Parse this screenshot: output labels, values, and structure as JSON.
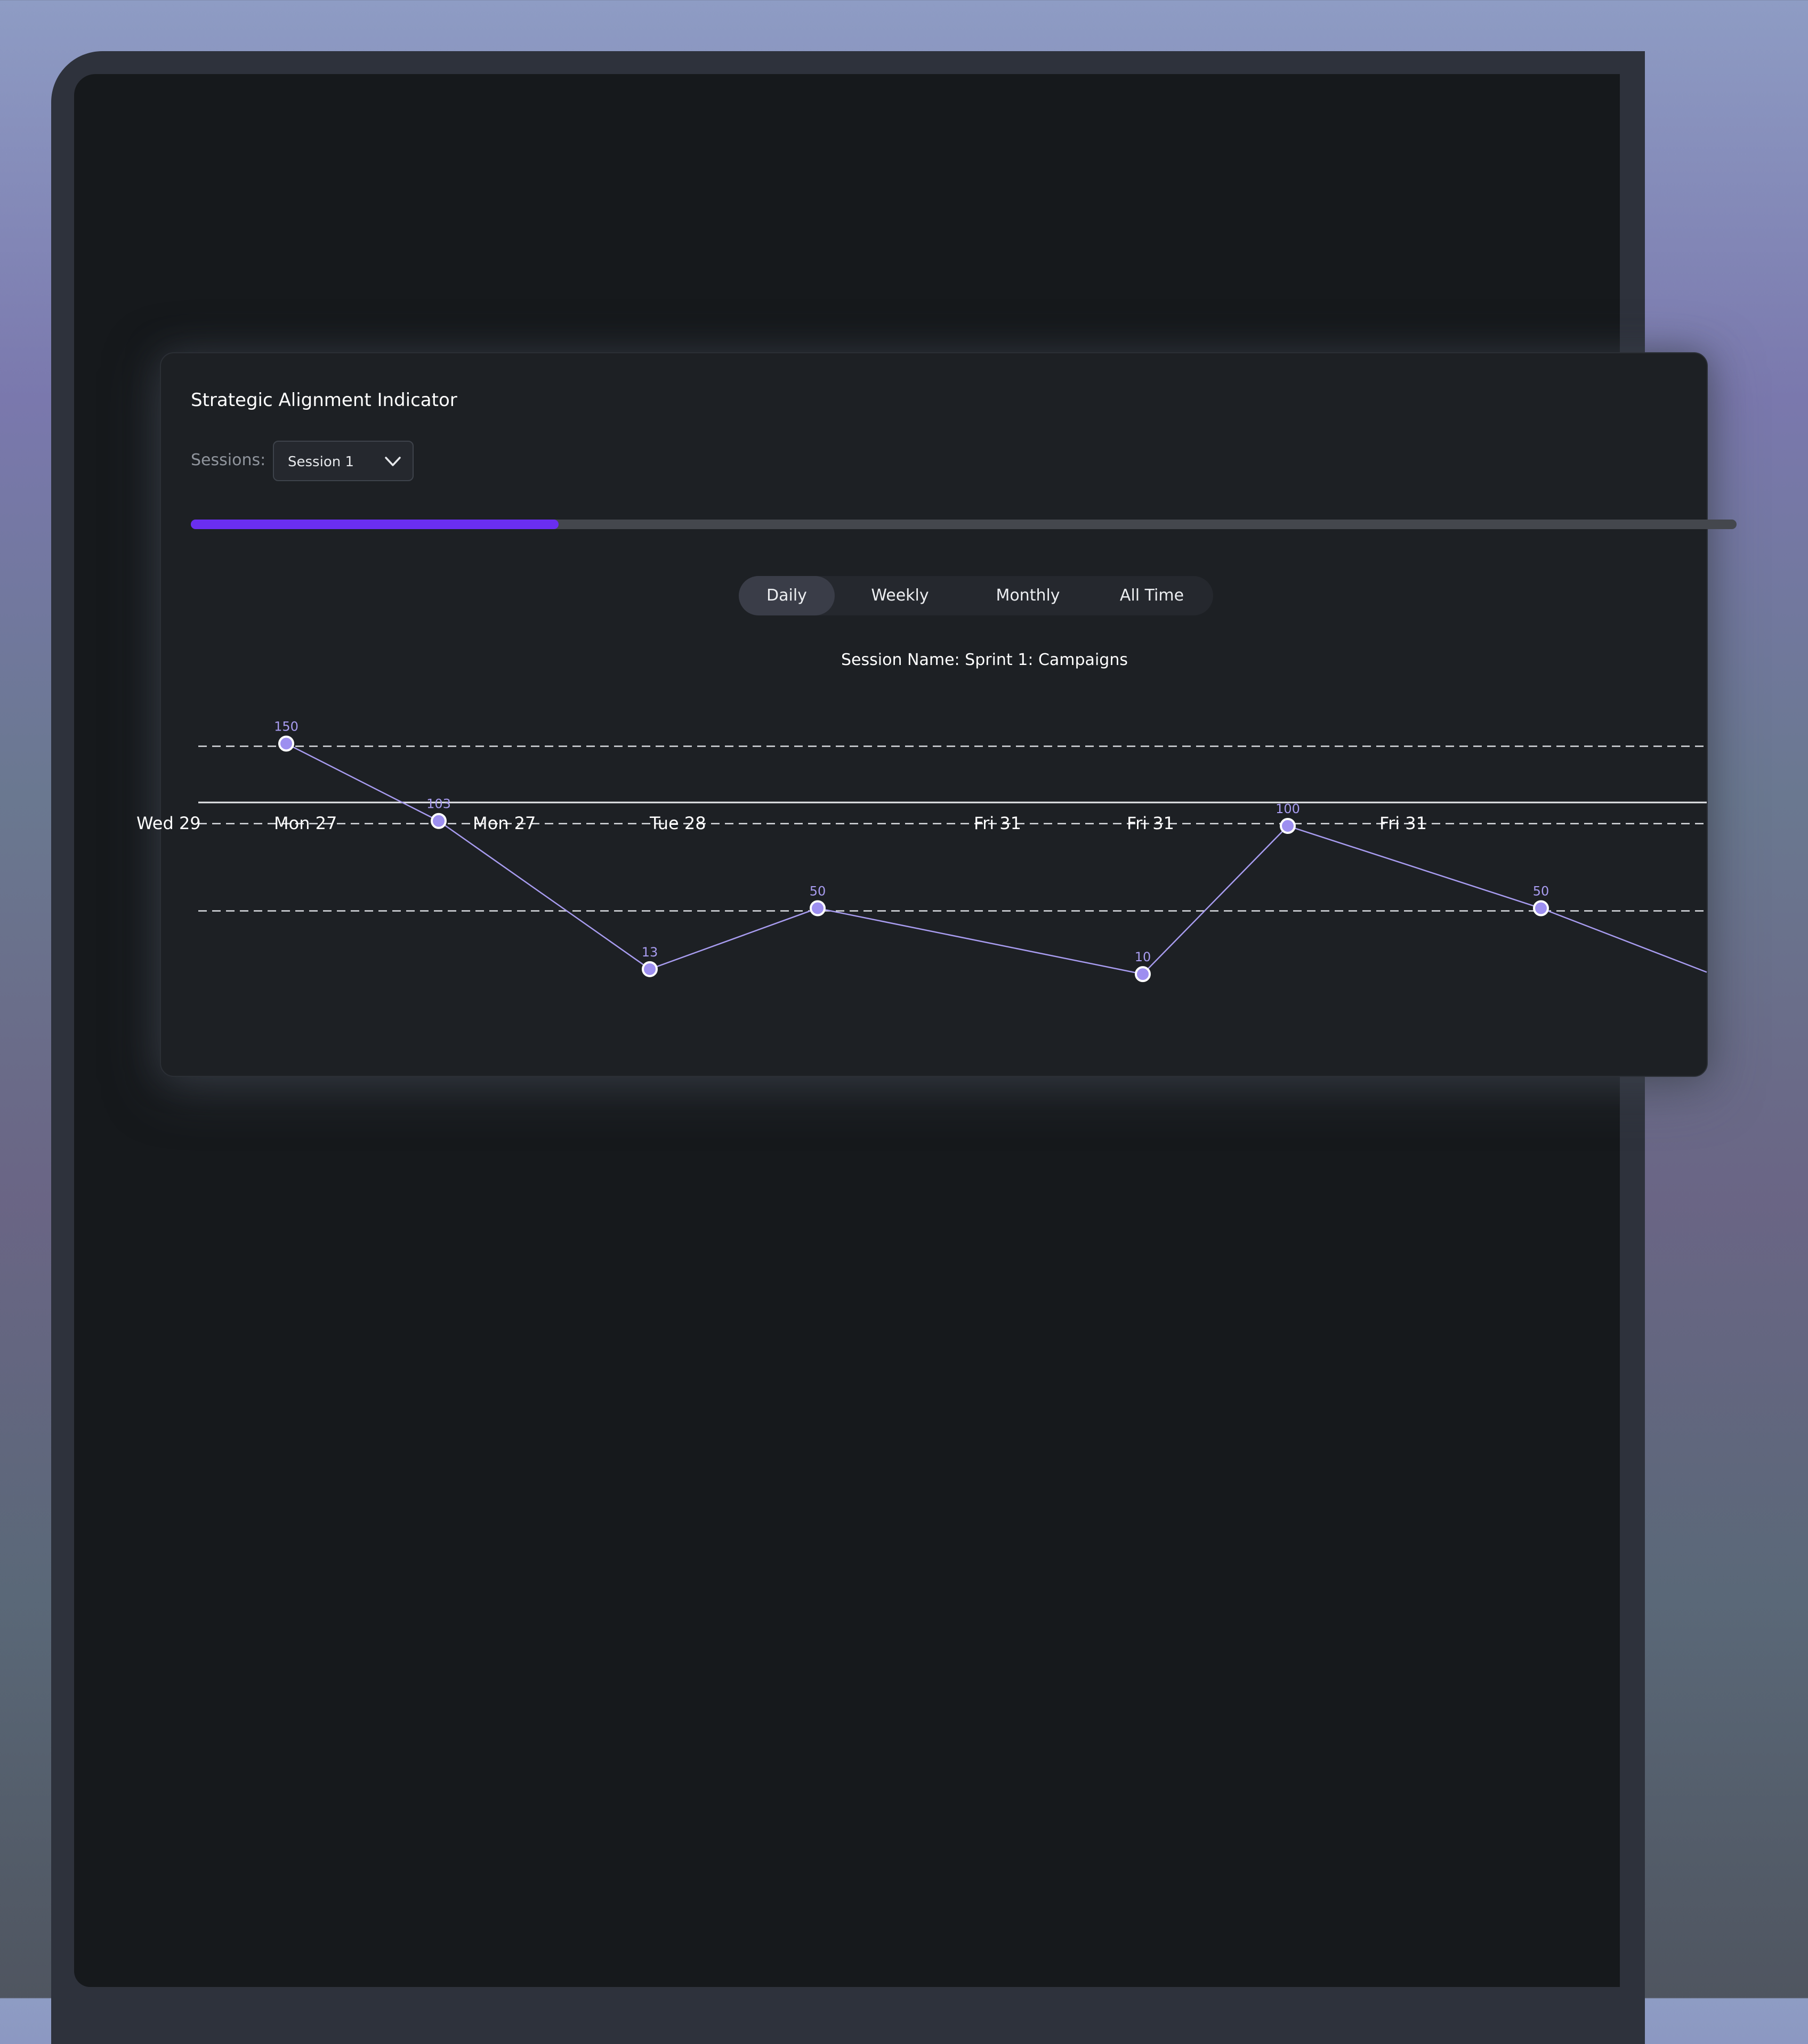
{
  "card": {
    "title": "Strategic Alignment Indicator"
  },
  "sessions": {
    "label": "Sessions:",
    "selected": "Session 1"
  },
  "progress": {
    "value": 0.25,
    "color": "#6a2ef0"
  },
  "period_tabs": [
    {
      "label": "Daily",
      "active": true
    },
    {
      "label": "Weekly",
      "active": false
    },
    {
      "label": "Monthly",
      "active": false
    },
    {
      "label": "All Time",
      "active": false
    }
  ],
  "chart_data": {
    "type": "line",
    "title": "Session Name: Sprint 1: Campaigns",
    "x": [
      "Wed 29",
      "Mon 27",
      "Mon 27",
      "Tue 28",
      "Fri 31",
      "Fri 31",
      "Fri 31"
    ],
    "series": [
      {
        "values": [
          150,
          103,
          13,
          50,
          10,
          100,
          50
        ]
      }
    ],
    "data_labels": [
      "150",
      "103",
      "13",
      "50",
      "10",
      "100",
      "50"
    ],
    "ylim": [
      0,
      150
    ],
    "grid": "horizontal dashed",
    "line_color": "#a89cf0",
    "point_color": "#9d8ff0"
  }
}
